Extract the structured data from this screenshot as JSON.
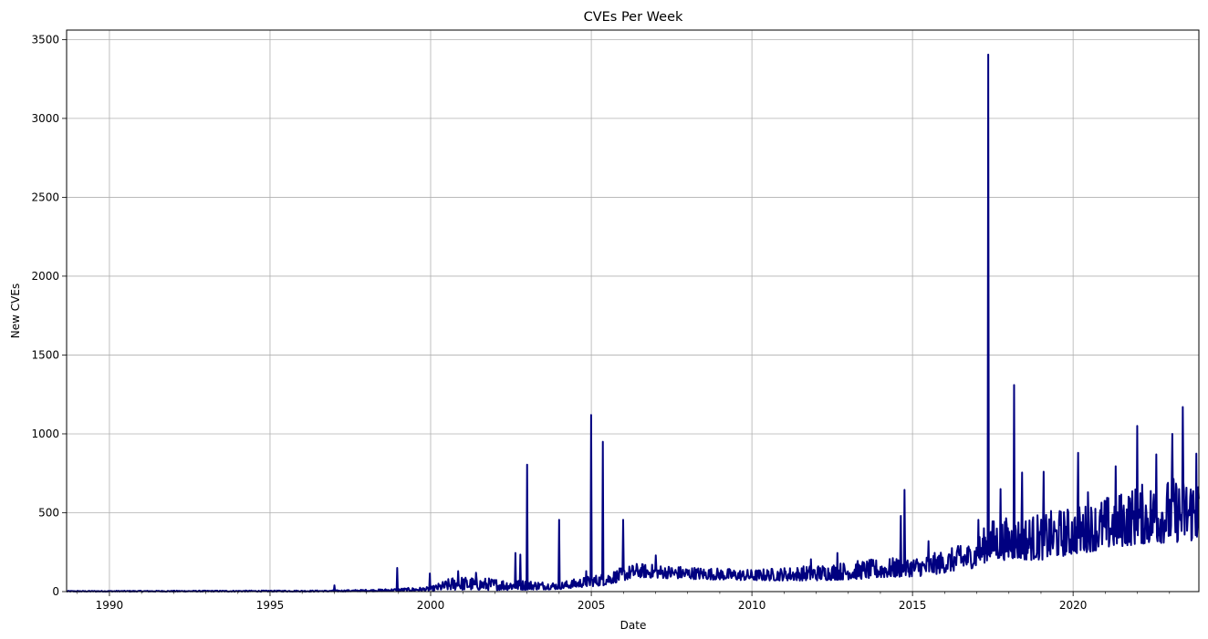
{
  "chart_data": {
    "type": "line",
    "title": "CVEs Per Week",
    "xlabel": "Date",
    "ylabel": "New CVEs",
    "xlim": [
      "1988-09-01",
      "2023-12-01"
    ],
    "ylim": [
      0,
      3560
    ],
    "x_ticks": [
      {
        "value": "1990-01-01",
        "label": "1990"
      },
      {
        "value": "1995-01-01",
        "label": "1995"
      },
      {
        "value": "2000-01-01",
        "label": "2000"
      },
      {
        "value": "2005-01-01",
        "label": "2005"
      },
      {
        "value": "2010-01-01",
        "label": "2010"
      },
      {
        "value": "2015-01-01",
        "label": "2015"
      },
      {
        "value": "2020-01-01",
        "label": "2020"
      }
    ],
    "y_ticks": [
      {
        "value": 0,
        "label": "0"
      },
      {
        "value": 500,
        "label": "500"
      },
      {
        "value": 1000,
        "label": "1000"
      },
      {
        "value": 1500,
        "label": "1500"
      },
      {
        "value": 2000,
        "label": "2000"
      },
      {
        "value": 2500,
        "label": "2500"
      },
      {
        "value": 3000,
        "label": "3000"
      },
      {
        "value": 3500,
        "label": "3500"
      }
    ],
    "grid": true,
    "line_color": "#000080",
    "series": [
      {
        "base_levels": [
          {
            "date": "1988-09-01",
            "low": 0,
            "high": 5
          },
          {
            "date": "1996-12-01",
            "low": 0,
            "high": 8
          },
          {
            "date": "1998-06-01",
            "low": 2,
            "high": 15
          },
          {
            "date": "2000-01-01",
            "low": 5,
            "high": 30
          },
          {
            "date": "2000-10-01",
            "low": 10,
            "high": 100
          },
          {
            "date": "2002-06-01",
            "low": 10,
            "high": 80
          },
          {
            "date": "2004-01-01",
            "low": 15,
            "high": 60
          },
          {
            "date": "2005-06-01",
            "low": 40,
            "high": 120
          },
          {
            "date": "2006-06-01",
            "low": 90,
            "high": 180
          },
          {
            "date": "2008-01-01",
            "low": 80,
            "high": 160
          },
          {
            "date": "2010-01-01",
            "low": 70,
            "high": 140
          },
          {
            "date": "2012-01-01",
            "low": 70,
            "high": 170
          },
          {
            "date": "2013-06-01",
            "low": 80,
            "high": 200
          },
          {
            "date": "2015-06-01",
            "low": 100,
            "high": 230
          },
          {
            "date": "2016-12-01",
            "low": 150,
            "high": 320
          },
          {
            "date": "2017-06-01",
            "low": 200,
            "high": 460
          },
          {
            "date": "2019-01-01",
            "low": 200,
            "high": 500
          },
          {
            "date": "2020-06-01",
            "low": 250,
            "high": 560
          },
          {
            "date": "2022-01-01",
            "low": 300,
            "high": 680
          },
          {
            "date": "2023-12-01",
            "low": 320,
            "high": 760
          }
        ],
        "peaks": [
          {
            "date": "1997-01-05",
            "value": 40
          },
          {
            "date": "1998-12-20",
            "value": 150
          },
          {
            "date": "1999-12-25",
            "value": 115
          },
          {
            "date": "2000-11-10",
            "value": 130
          },
          {
            "date": "2001-06-01",
            "value": 120
          },
          {
            "date": "2002-08-20",
            "value": 245
          },
          {
            "date": "2002-10-15",
            "value": 235
          },
          {
            "date": "2003-01-01",
            "value": 805
          },
          {
            "date": "2003-12-31",
            "value": 455
          },
          {
            "date": "2004-11-01",
            "value": 130
          },
          {
            "date": "2005-01-01",
            "value": 1120
          },
          {
            "date": "2005-05-10",
            "value": 950
          },
          {
            "date": "2006-01-01",
            "value": 455
          },
          {
            "date": "2007-01-01",
            "value": 230
          },
          {
            "date": "2011-11-01",
            "value": 205
          },
          {
            "date": "2012-09-01",
            "value": 245
          },
          {
            "date": "2014-08-20",
            "value": 480
          },
          {
            "date": "2014-10-01",
            "value": 645
          },
          {
            "date": "2015-07-01",
            "value": 320
          },
          {
            "date": "2016-07-01",
            "value": 290
          },
          {
            "date": "2017-01-20",
            "value": 455
          },
          {
            "date": "2017-05-10",
            "value": 3405
          },
          {
            "date": "2017-10-01",
            "value": 650
          },
          {
            "date": "2018-03-01",
            "value": 1310
          },
          {
            "date": "2018-06-01",
            "value": 755
          },
          {
            "date": "2019-02-01",
            "value": 760
          },
          {
            "date": "2020-03-01",
            "value": 880
          },
          {
            "date": "2020-06-15",
            "value": 630
          },
          {
            "date": "2021-05-01",
            "value": 795
          },
          {
            "date": "2022-01-01",
            "value": 1050
          },
          {
            "date": "2022-08-01",
            "value": 870
          },
          {
            "date": "2023-02-01",
            "value": 1000
          },
          {
            "date": "2023-06-01",
            "value": 1170
          },
          {
            "date": "2023-11-01",
            "value": 875
          }
        ]
      }
    ]
  }
}
